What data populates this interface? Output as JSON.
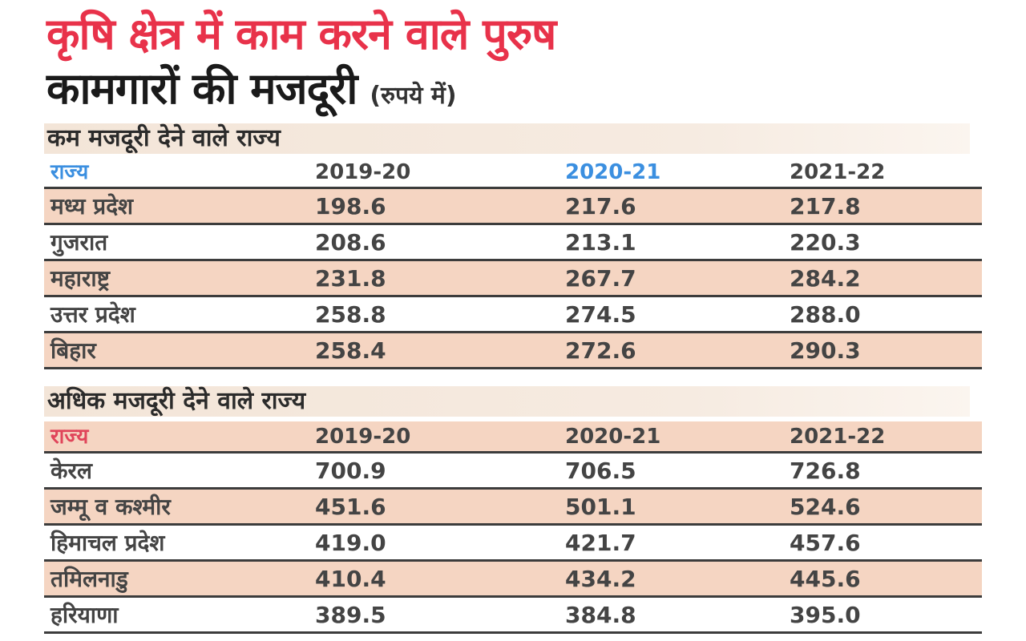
{
  "title": {
    "line1": "कृषि क्षेत्र में काम करने वाले पुरुष",
    "line2": "कामगारों की मजदूरी",
    "unit": "(रुपये में)"
  },
  "colors": {
    "title_accent": "#e8324a",
    "row_shade": "#f5d5c2",
    "header_blue": "#3b8fe0",
    "header_red": "#e0455a"
  },
  "chart_data": [
    {
      "type": "table",
      "title": "कम मजदूरी देने वाले राज्य",
      "columns": [
        "राज्य",
        "2019-20",
        "2020-21",
        "2021-22"
      ],
      "rows": [
        [
          "मध्य प्रदेश",
          "198.6",
          "217.6",
          "217.8"
        ],
        [
          "गुजरात",
          "208.6",
          "213.1",
          "220.3"
        ],
        [
          "महाराष्ट्र",
          "231.8",
          "267.7",
          "284.2"
        ],
        [
          "उत्तर प्रदेश",
          "258.8",
          "274.5",
          "288.0"
        ],
        [
          "बिहार",
          "258.4",
          "272.6",
          "290.3"
        ]
      ]
    },
    {
      "type": "table",
      "title": "अधिक मजदूरी देने वाले राज्य",
      "columns": [
        "राज्य",
        "2019-20",
        "2020-21",
        "2021-22"
      ],
      "rows": [
        [
          "केरल",
          "700.9",
          "706.5",
          "726.8"
        ],
        [
          "जम्मू व कश्मीर",
          "451.6",
          "501.1",
          "524.6"
        ],
        [
          "हिमाचल प्रदेश",
          "419.0",
          "421.7",
          "457.6"
        ],
        [
          "तमिलनाडु",
          "410.4",
          "434.2",
          "445.6"
        ],
        [
          "हरियाणा",
          "389.5",
          "384.8",
          "395.0"
        ]
      ]
    }
  ]
}
